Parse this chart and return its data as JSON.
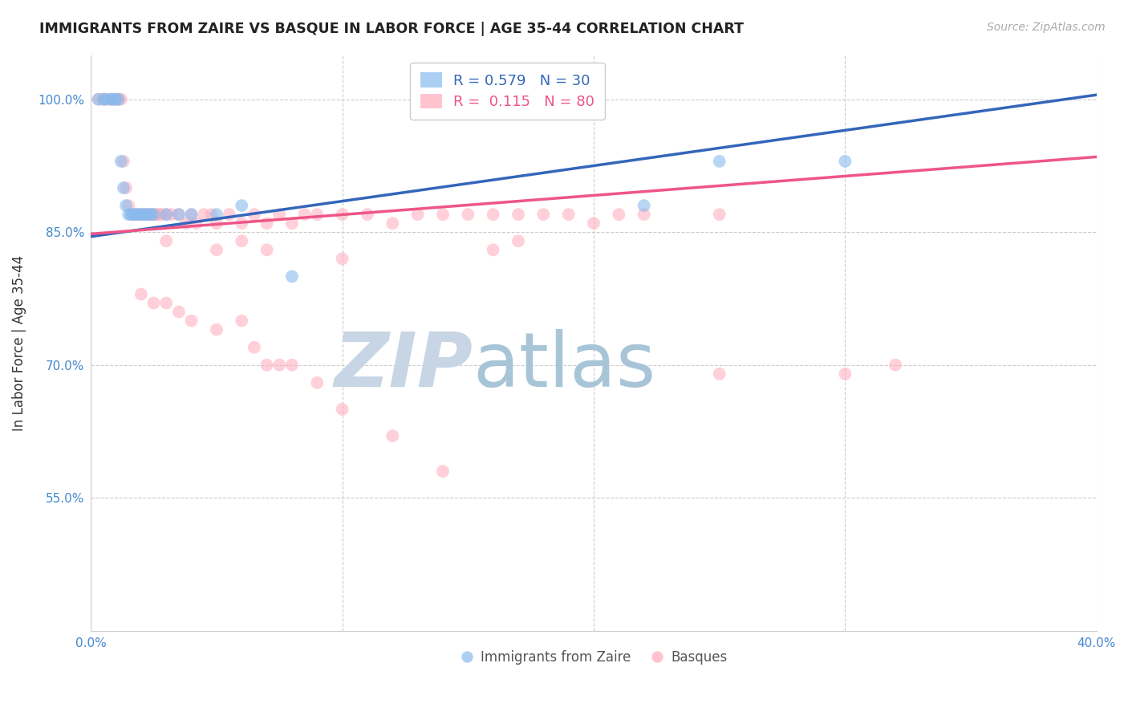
{
  "title": "IMMIGRANTS FROM ZAIRE VS BASQUE IN LABOR FORCE | AGE 35-44 CORRELATION CHART",
  "source_text": "Source: ZipAtlas.com",
  "ylabel": "In Labor Force | Age 35-44",
  "xlim": [
    0.0,
    0.4
  ],
  "ylim": [
    0.4,
    1.05
  ],
  "xticks": [
    0.0,
    0.1,
    0.2,
    0.3,
    0.4
  ],
  "xticklabels": [
    "0.0%",
    "",
    "",
    "",
    "40.0%"
  ],
  "yticks": [
    0.55,
    0.7,
    0.85,
    1.0
  ],
  "yticklabels": [
    "55.0%",
    "70.0%",
    "85.0%",
    "100.0%"
  ],
  "grid_color": "#cccccc",
  "bg_color": "#ffffff",
  "blue_color": "#88bbee",
  "pink_color": "#ffaabb",
  "blue_line_color": "#3366bb",
  "pink_line_color": "#ee5588",
  "legend_r_blue": "0.579",
  "legend_n_blue": "30",
  "legend_r_pink": "0.115",
  "legend_n_pink": "80",
  "legend_label_blue": "Immigrants from Zaire",
  "legend_label_pink": "Basques",
  "watermark_zip": "ZIP",
  "watermark_atlas": "atlas",
  "watermark_color_zip": "#c8d5e5",
  "watermark_color_atlas": "#a8c5d8",
  "blue_line_x0": 0.0,
  "blue_line_y0": 0.845,
  "blue_line_x1": 0.4,
  "blue_line_y1": 1.005,
  "pink_line_x0": 0.0,
  "pink_line_y0": 0.848,
  "pink_line_x1": 0.4,
  "pink_line_y1": 0.935,
  "blue_scatter_x": [
    0.003,
    0.005,
    0.006,
    0.008,
    0.009,
    0.01,
    0.011,
    0.012,
    0.013,
    0.014,
    0.015,
    0.016,
    0.017,
    0.018,
    0.019,
    0.02,
    0.021,
    0.022,
    0.023,
    0.024,
    0.025,
    0.03,
    0.035,
    0.04,
    0.05,
    0.06,
    0.08,
    0.22,
    0.25,
    0.3
  ],
  "blue_scatter_y": [
    1.0,
    1.0,
    1.0,
    1.0,
    1.0,
    1.0,
    1.0,
    0.93,
    0.9,
    0.88,
    0.87,
    0.87,
    0.87,
    0.87,
    0.87,
    0.87,
    0.87,
    0.87,
    0.87,
    0.87,
    0.87,
    0.87,
    0.87,
    0.87,
    0.87,
    0.88,
    0.8,
    0.88,
    0.93,
    0.93
  ],
  "pink_scatter_x": [
    0.003,
    0.005,
    0.006,
    0.008,
    0.009,
    0.01,
    0.011,
    0.012,
    0.013,
    0.014,
    0.015,
    0.016,
    0.017,
    0.018,
    0.019,
    0.02,
    0.021,
    0.022,
    0.023,
    0.024,
    0.025,
    0.026,
    0.027,
    0.028,
    0.03,
    0.032,
    0.035,
    0.038,
    0.04,
    0.042,
    0.045,
    0.048,
    0.05,
    0.055,
    0.06,
    0.065,
    0.07,
    0.075,
    0.08,
    0.085,
    0.09,
    0.1,
    0.11,
    0.12,
    0.13,
    0.14,
    0.15,
    0.16,
    0.17,
    0.18,
    0.19,
    0.2,
    0.21,
    0.22,
    0.25,
    0.03,
    0.05,
    0.06,
    0.07,
    0.1,
    0.16,
    0.17,
    0.02,
    0.025,
    0.03,
    0.035,
    0.04,
    0.05,
    0.06,
    0.065,
    0.07,
    0.075,
    0.08,
    0.09,
    0.1,
    0.12,
    0.14,
    0.25,
    0.3,
    0.32
  ],
  "pink_scatter_y": [
    1.0,
    1.0,
    1.0,
    1.0,
    1.0,
    1.0,
    1.0,
    1.0,
    0.93,
    0.9,
    0.88,
    0.87,
    0.87,
    0.87,
    0.87,
    0.87,
    0.87,
    0.87,
    0.87,
    0.87,
    0.87,
    0.87,
    0.87,
    0.87,
    0.87,
    0.87,
    0.87,
    0.86,
    0.87,
    0.86,
    0.87,
    0.87,
    0.86,
    0.87,
    0.86,
    0.87,
    0.86,
    0.87,
    0.86,
    0.87,
    0.87,
    0.87,
    0.87,
    0.86,
    0.87,
    0.87,
    0.87,
    0.87,
    0.87,
    0.87,
    0.87,
    0.86,
    0.87,
    0.87,
    0.87,
    0.84,
    0.83,
    0.84,
    0.83,
    0.82,
    0.83,
    0.84,
    0.78,
    0.77,
    0.77,
    0.76,
    0.75,
    0.74,
    0.75,
    0.72,
    0.7,
    0.7,
    0.7,
    0.68,
    0.65,
    0.62,
    0.58,
    0.69,
    0.69,
    0.7
  ]
}
